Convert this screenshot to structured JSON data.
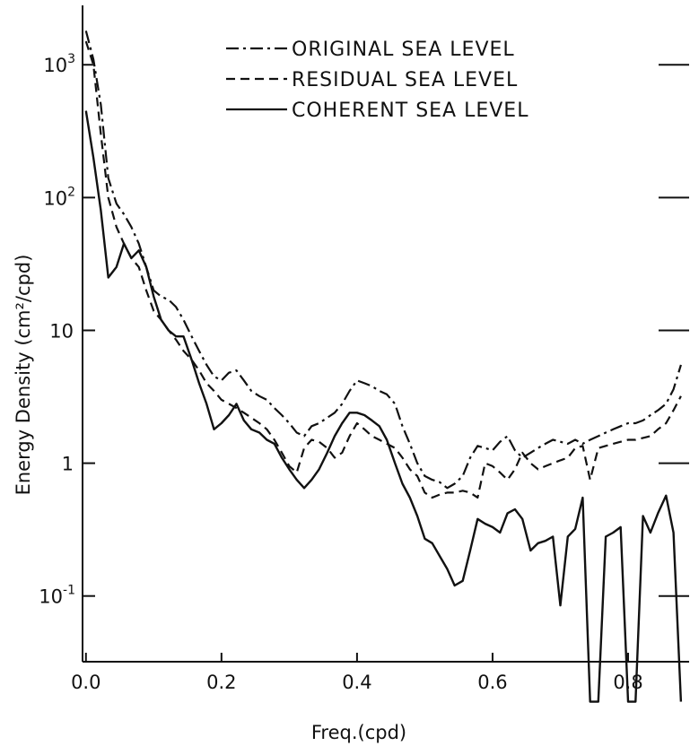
{
  "chart_data": {
    "type": "line",
    "title": "",
    "xlabel": "Freq.(cpd)",
    "ylabel": "Energy Density (cm²/cpd)",
    "xlim": [
      -0.005,
      0.89
    ],
    "ylim": [
      0.032,
      2800
    ],
    "y_scale": "log",
    "grid": false,
    "legend_position": "top-right",
    "x_ticks": [
      {
        "value": 0.0,
        "label": "0.0"
      },
      {
        "value": 0.2,
        "label": "0.2"
      },
      {
        "value": 0.4,
        "label": "0.4"
      },
      {
        "value": 0.6,
        "label": "0.6"
      },
      {
        "value": 0.8,
        "label": "0.8"
      }
    ],
    "y_ticks": [
      {
        "value": 0.1,
        "label": "10",
        "exp": "-1"
      },
      {
        "value": 1,
        "label": "1",
        "exp": ""
      },
      {
        "value": 10,
        "label": "10",
        "exp": ""
      },
      {
        "value": 100,
        "label": "10",
        "exp": "2"
      },
      {
        "value": 1000,
        "label": "10",
        "exp": "3"
      }
    ],
    "series": [
      {
        "name": "ORIGINAL SEA LEVEL",
        "style": "dashdot",
        "x": [
          0.0,
          0.011,
          0.022,
          0.033,
          0.045,
          0.056,
          0.067,
          0.078,
          0.089,
          0.1,
          0.111,
          0.122,
          0.133,
          0.144,
          0.156,
          0.167,
          0.178,
          0.189,
          0.2,
          0.211,
          0.222,
          0.233,
          0.244,
          0.256,
          0.267,
          0.278,
          0.289,
          0.3,
          0.311,
          0.322,
          0.333,
          0.344,
          0.356,
          0.367,
          0.378,
          0.389,
          0.4,
          0.411,
          0.422,
          0.433,
          0.444,
          0.456,
          0.467,
          0.478,
          0.489,
          0.5,
          0.511,
          0.522,
          0.533,
          0.544,
          0.556,
          0.567,
          0.578,
          0.589,
          0.6,
          0.611,
          0.622,
          0.633,
          0.644,
          0.656,
          0.667,
          0.678,
          0.689,
          0.7,
          0.711,
          0.722,
          0.733,
          0.744,
          0.756,
          0.767,
          0.778,
          0.789,
          0.8,
          0.811,
          0.822,
          0.833,
          0.844,
          0.856,
          0.867,
          0.878
        ],
        "y": [
          1800,
          1100,
          500,
          140,
          90,
          75,
          60,
          45,
          30,
          20,
          18,
          17,
          15,
          12,
          9,
          7,
          5.5,
          4.5,
          4.2,
          4.8,
          5,
          4.2,
          3.5,
          3.2,
          3,
          2.6,
          2.3,
          2,
          1.7,
          1.6,
          1.9,
          2,
          2.2,
          2.4,
          2.8,
          3.5,
          4.2,
          4,
          3.8,
          3.5,
          3.3,
          2.8,
          1.9,
          1.4,
          1,
          0.8,
          0.75,
          0.72,
          0.65,
          0.7,
          0.8,
          1.1,
          1.35,
          1.3,
          1.25,
          1.45,
          1.6,
          1.25,
          1.1,
          1.2,
          1.3,
          1.4,
          1.5,
          1.45,
          1.4,
          1.5,
          1.4,
          1.5,
          1.6,
          1.7,
          1.8,
          1.9,
          2,
          2,
          2.1,
          2.3,
          2.5,
          2.8,
          3.6,
          5.5
        ]
      },
      {
        "name": "RESIDUAL SEA LEVEL",
        "style": "dashed",
        "x": [
          0.0,
          0.011,
          0.022,
          0.033,
          0.045,
          0.056,
          0.067,
          0.078,
          0.089,
          0.1,
          0.111,
          0.122,
          0.133,
          0.144,
          0.156,
          0.167,
          0.178,
          0.189,
          0.2,
          0.211,
          0.222,
          0.233,
          0.244,
          0.256,
          0.267,
          0.278,
          0.289,
          0.3,
          0.311,
          0.322,
          0.333,
          0.344,
          0.356,
          0.367,
          0.378,
          0.389,
          0.4,
          0.411,
          0.422,
          0.433,
          0.444,
          0.456,
          0.467,
          0.478,
          0.489,
          0.5,
          0.511,
          0.522,
          0.533,
          0.544,
          0.556,
          0.567,
          0.578,
          0.589,
          0.6,
          0.611,
          0.622,
          0.633,
          0.644,
          0.656,
          0.667,
          0.678,
          0.689,
          0.7,
          0.711,
          0.722,
          0.733,
          0.744,
          0.756,
          0.767,
          0.778,
          0.789,
          0.8,
          0.811,
          0.822,
          0.833,
          0.844,
          0.856,
          0.867,
          0.878
        ],
        "y": [
          1500,
          1000,
          300,
          100,
          60,
          45,
          35,
          30,
          20,
          14,
          12,
          10,
          8.5,
          7,
          6,
          5,
          4,
          3.5,
          3,
          2.8,
          2.6,
          2.4,
          2.2,
          2,
          1.8,
          1.5,
          1.2,
          0.95,
          0.85,
          1.3,
          1.5,
          1.45,
          1.3,
          1.1,
          1.2,
          1.6,
          2,
          1.8,
          1.6,
          1.5,
          1.4,
          1.3,
          1.1,
          0.9,
          0.8,
          0.6,
          0.55,
          0.58,
          0.6,
          0.6,
          0.62,
          0.6,
          0.55,
          1.0,
          0.95,
          0.85,
          0.75,
          0.9,
          1.2,
          1.0,
          0.9,
          0.95,
          1.0,
          1.05,
          1.1,
          1.3,
          1.35,
          0.75,
          1.3,
          1.35,
          1.4,
          1.45,
          1.5,
          1.5,
          1.55,
          1.6,
          1.8,
          2.0,
          2.5,
          3.2
        ]
      },
      {
        "name": "COHERENT SEA LEVEL",
        "style": "solid",
        "x": [
          0.0,
          0.011,
          0.022,
          0.033,
          0.045,
          0.056,
          0.067,
          0.078,
          0.089,
          0.1,
          0.111,
          0.122,
          0.133,
          0.144,
          0.156,
          0.167,
          0.178,
          0.189,
          0.2,
          0.211,
          0.222,
          0.233,
          0.244,
          0.256,
          0.267,
          0.278,
          0.289,
          0.3,
          0.311,
          0.322,
          0.333,
          0.344,
          0.356,
          0.367,
          0.378,
          0.389,
          0.4,
          0.411,
          0.422,
          0.433,
          0.444,
          0.456,
          0.467,
          0.478,
          0.489,
          0.5,
          0.511,
          0.522,
          0.533,
          0.544,
          0.556,
          0.567,
          0.578,
          0.589,
          0.6,
          0.611,
          0.622,
          0.633,
          0.644,
          0.656,
          0.667,
          0.678,
          0.689,
          0.7,
          0.711,
          0.722,
          0.733,
          0.744,
          0.756,
          0.767,
          0.778,
          0.789,
          0.8,
          0.811,
          0.822,
          0.833,
          0.844,
          0.856,
          0.867,
          0.878
        ],
        "y": [
          450,
          200,
          80,
          25,
          30,
          45,
          35,
          40,
          30,
          18,
          12,
          10,
          9,
          9,
          6,
          4,
          2.8,
          1.8,
          2.0,
          2.3,
          2.8,
          2.1,
          1.8,
          1.7,
          1.5,
          1.4,
          1.1,
          0.9,
          0.75,
          0.65,
          0.75,
          0.9,
          1.2,
          1.6,
          2.0,
          2.4,
          2.4,
          2.3,
          2.1,
          1.9,
          1.5,
          1.0,
          0.7,
          0.55,
          0.4,
          0.27,
          0.25,
          0.2,
          0.16,
          0.12,
          0.13,
          0.22,
          0.38,
          0.35,
          0.33,
          0.3,
          0.42,
          0.45,
          0.38,
          0.22,
          0.25,
          0.26,
          0.28,
          0.085,
          0.28,
          0.32,
          0.55,
          0.01,
          0.01,
          0.28,
          0.3,
          0.33,
          0.01,
          0.01,
          0.4,
          0.3,
          0.42,
          0.57,
          0.3,
          0.01
        ]
      }
    ]
  }
}
